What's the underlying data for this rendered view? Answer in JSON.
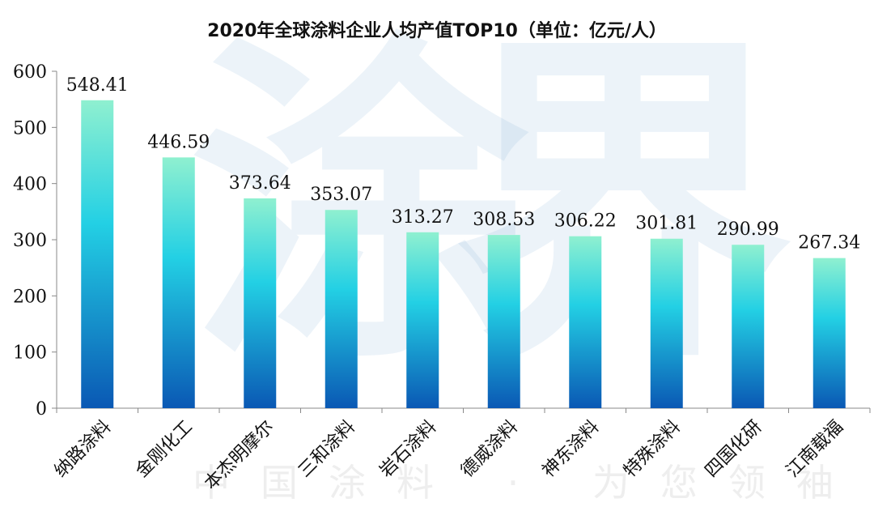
{
  "chart_data": {
    "type": "bar",
    "title": "2020年全球涂料企业人均产值TOP10（单位：亿元/人）",
    "categories": [
      "纳路涂料",
      "金刚化工",
      "本杰明摩尔",
      "三和涂料",
      "岩石涂料",
      "德威涂料",
      "神东涂料",
      "特殊涂料",
      "四国化研",
      "江南载福"
    ],
    "values": [
      548.41,
      446.59,
      373.64,
      353.07,
      313.27,
      308.53,
      306.22,
      301.81,
      290.99,
      267.34
    ],
    "value_labels": [
      "548.41",
      "446.59",
      "373.64",
      "353.07",
      "313.27",
      "308.53",
      "306.22",
      "301.81",
      "290.99",
      "267.34"
    ],
    "ylim": [
      0,
      600
    ],
    "yticks": [
      0,
      100,
      200,
      300,
      400,
      500,
      600
    ],
    "xlabel": "",
    "ylabel": "",
    "grid": false,
    "legend": "none",
    "colors": {
      "bar_top": "#8ff0d0",
      "bar_mid": "#23d0e4",
      "bar_bottom": "#0a58b4",
      "axis": "#888888",
      "text": "#111111"
    }
  },
  "watermark": {
    "big": [
      "涂",
      "界"
    ],
    "sub": "中国涂料 · 为您领袖"
  }
}
